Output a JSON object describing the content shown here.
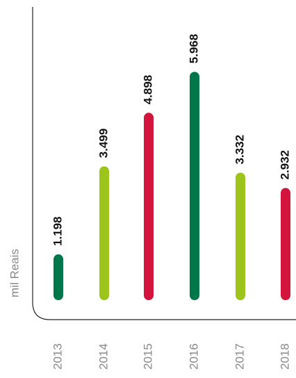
{
  "chart_data": {
    "type": "bar",
    "y_label": "mil Reais",
    "categories": [
      "2013",
      "2014",
      "2015",
      "2016",
      "2017",
      "2018"
    ],
    "values": [
      1198,
      3499,
      4898,
      5968,
      3332,
      2932
    ],
    "value_labels": [
      "1.198",
      "3.499",
      "4.898",
      "5.968",
      "3.332",
      "2.932"
    ],
    "colors": [
      "#00774a",
      "#9cc41b",
      "#d3143c",
      "#00774a",
      "#9cc41b",
      "#d3143c"
    ],
    "ylim": [
      0,
      7500
    ]
  }
}
